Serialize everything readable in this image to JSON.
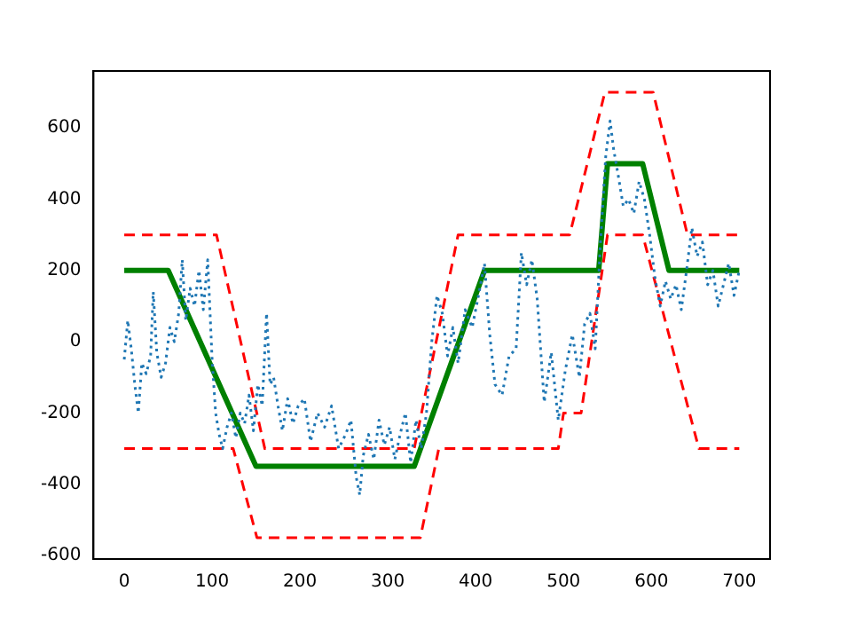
{
  "chart_data": {
    "type": "line",
    "xlim": [
      -35,
      735
    ],
    "ylim": [
      -610,
      760
    ],
    "xticks": [
      0,
      100,
      200,
      300,
      400,
      500,
      600,
      700
    ],
    "yticks": [
      -600,
      -400,
      -200,
      0,
      200,
      400,
      600
    ],
    "grid": false,
    "legend": false,
    "series": [
      {
        "color": "#1f77b4",
        "line_style": "dotted",
        "x": [
          0,
          4,
          8,
          12,
          16,
          20,
          25,
          30,
          33,
          37,
          42,
          47,
          52,
          57,
          62,
          66,
          70,
          75,
          80,
          85,
          90,
          95,
          100,
          104,
          108,
          112,
          117,
          122,
          127,
          132,
          137,
          142,
          147,
          152,
          157,
          162,
          166,
          170,
          175,
          180,
          186,
          192,
          198,
          205,
          212,
          220,
          228,
          236,
          244,
          252,
          258,
          264,
          268,
          272,
          278,
          284,
          290,
          296,
          302,
          308,
          314,
          320,
          326,
          332,
          338,
          344,
          350,
          356,
          362,
          368,
          374,
          380,
          388,
          396,
          404,
          410,
          416,
          422,
          430,
          438,
          446,
          452,
          458,
          464,
          470,
          478,
          486,
          494,
          502,
          510,
          518,
          524,
          530,
          536,
          542,
          548,
          553,
          557,
          562,
          568,
          574,
          580,
          586,
          592,
          598,
          604,
          610,
          616,
          622,
          628,
          634,
          640,
          646,
          652,
          658,
          664,
          670,
          676,
          682,
          688,
          694,
          700
        ],
        "values": [
          -50,
          60,
          -20,
          -120,
          -200,
          -60,
          -90,
          -40,
          140,
          -30,
          -100,
          -60,
          40,
          0,
          80,
          230,
          60,
          150,
          100,
          200,
          90,
          230,
          -50,
          -200,
          -260,
          -300,
          -240,
          -200,
          -270,
          -200,
          -230,
          -150,
          -250,
          -120,
          -180,
          80,
          -120,
          -100,
          -180,
          -250,
          -160,
          -230,
          -180,
          -160,
          -280,
          -200,
          -240,
          -180,
          -300,
          -260,
          -220,
          -380,
          -430,
          -320,
          -260,
          -330,
          -220,
          -290,
          -240,
          -330,
          -260,
          -200,
          -340,
          -220,
          -300,
          -200,
          0,
          130,
          80,
          -40,
          40,
          -60,
          90,
          40,
          140,
          220,
          20,
          -120,
          -150,
          -40,
          -20,
          250,
          160,
          230,
          120,
          -170,
          -30,
          -220,
          -80,
          20,
          -100,
          50,
          80,
          -20,
          280,
          520,
          620,
          540,
          470,
          380,
          400,
          360,
          450,
          400,
          300,
          180,
          100,
          170,
          120,
          160,
          90,
          200,
          320,
          240,
          280,
          160,
          200,
          100,
          160,
          220,
          130,
          200
        ]
      },
      {
        "color": "#ff0000",
        "line_style": "dashed",
        "x": [
          0,
          105,
          160,
          330,
          380,
          507,
          547,
          602,
          641,
          700
        ],
        "values": [
          300,
          300,
          -300,
          -300,
          300,
          300,
          700,
          700,
          300,
          300
        ]
      },
      {
        "color": "#ff0000",
        "line_style": "dashed",
        "x": [
          0,
          124,
          151,
          337,
          358,
          494,
          500,
          520,
          550,
          590,
          654,
          700
        ],
        "values": [
          -300,
          -300,
          -550,
          -550,
          -300,
          -300,
          -200,
          -200,
          300,
          300,
          -300,
          -300
        ]
      },
      {
        "color": "#008000",
        "line_style": "solid",
        "x": [
          0,
          50,
          150,
          330,
          410,
          540,
          550,
          590,
          620,
          700
        ],
        "values": [
          200,
          200,
          -350,
          -350,
          200,
          200,
          500,
          500,
          200,
          200
        ]
      }
    ]
  }
}
